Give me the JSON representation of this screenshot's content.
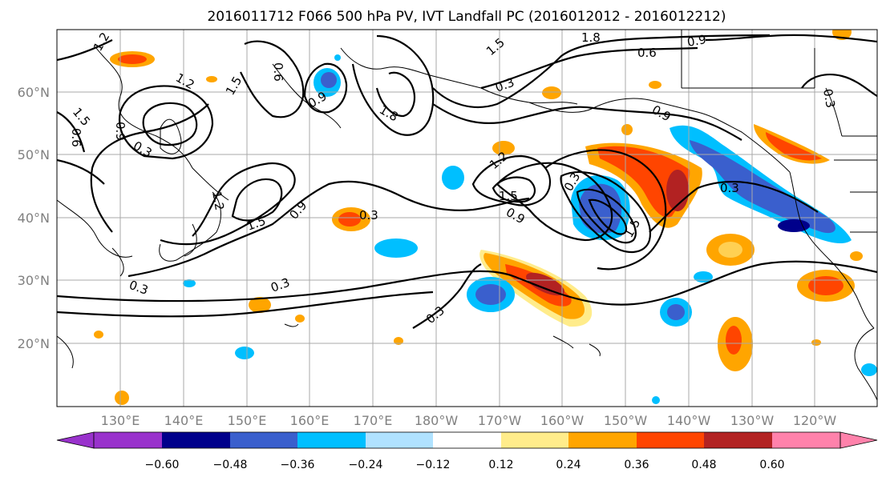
{
  "title": "2016011712 F066 500 hPa PV, IVT Landfall PC (2016012012 - 2016012212)",
  "lat_labels": [
    "60°N",
    "50°N",
    "40°N",
    "30°N",
    "20°N"
  ],
  "lon_labels": [
    "130°E",
    "140°E",
    "150°E",
    "160°E",
    "170°E",
    "180°W",
    "170°W",
    "160°W",
    "150°W",
    "140°W",
    "130°W",
    "120°W"
  ],
  "colorbar": {
    "ticks": [
      "−0.60",
      "−0.48",
      "−0.36",
      "−0.24",
      "−0.12",
      "0.12",
      "0.24",
      "0.36",
      "0.48",
      "0.60"
    ],
    "under_color": "#9932cc",
    "colors": [
      "#00008b",
      "#3a5fcd",
      "#00bfff",
      "#b0e2ff",
      "#ffffff",
      "#ffec8b",
      "#ffa500",
      "#ff4500",
      "#b22222"
    ],
    "over_color": "#ff82ab"
  },
  "contour_labels": [
    "1.2",
    "1.2",
    "1.5",
    "0.9",
    "0.6",
    "0.6",
    "1.5",
    "1.8",
    "0.9",
    "1.5",
    "1.8",
    "0.9",
    "0.6",
    "0.3",
    "0.3",
    "1.2",
    "1.5",
    "0.9",
    "0.3",
    "0.3",
    "0.3",
    "0.9",
    "0.3",
    "1.2",
    "1.5",
    "0.9",
    "0.3",
    "1.5",
    "0.3",
    "0.3"
  ]
}
